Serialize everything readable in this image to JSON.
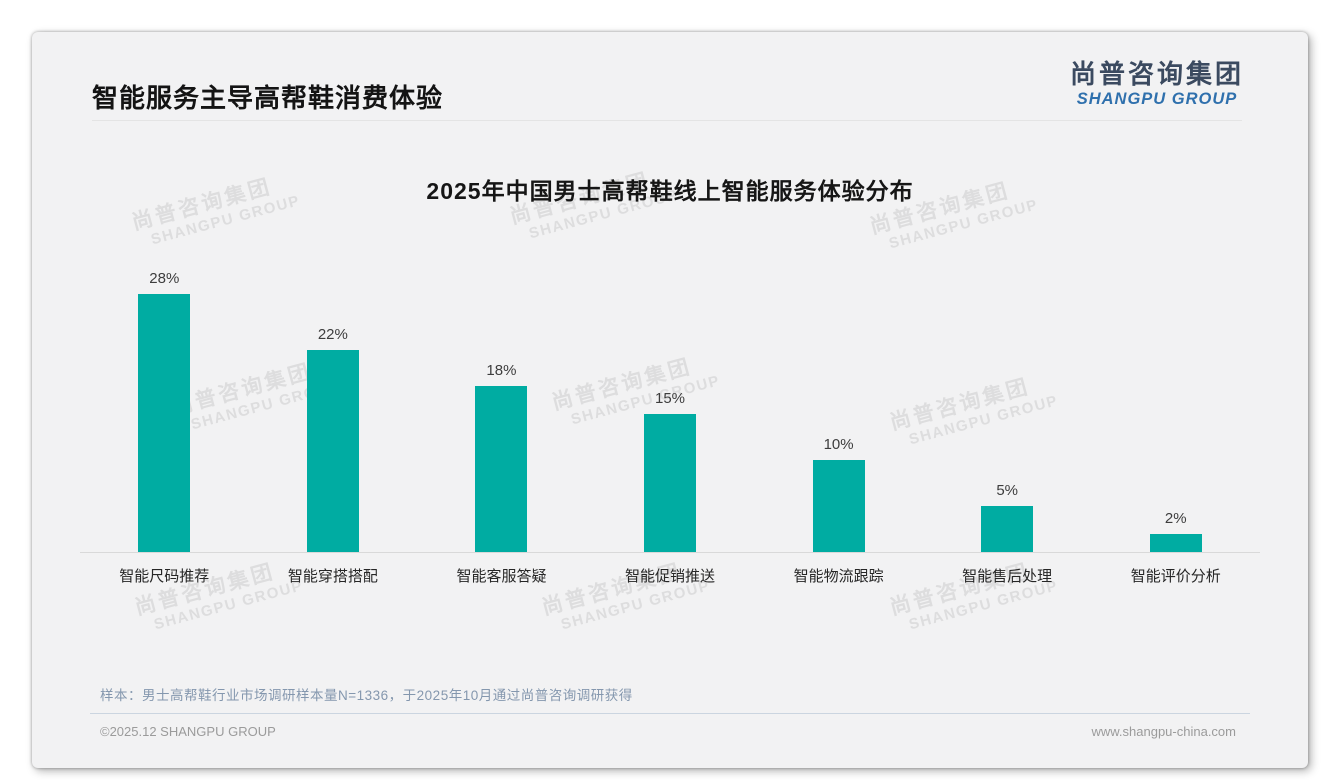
{
  "header": {
    "title": "智能服务主导高帮鞋消费体验",
    "logo_cn": "尚普咨询集团",
    "logo_en": "SHANGPU GROUP"
  },
  "chart_data": {
    "type": "bar",
    "title": "2025年中国男士高帮鞋线上智能服务体验分布",
    "categories": [
      "智能尺码推荐",
      "智能穿搭搭配",
      "智能客服答疑",
      "智能促销推送",
      "智能物流跟踪",
      "智能售后处理",
      "智能评价分析"
    ],
    "values": [
      28,
      22,
      18,
      15,
      10,
      5,
      2
    ],
    "value_labels": [
      "28%",
      "22%",
      "18%",
      "15%",
      "10%",
      "5%",
      "2%"
    ],
    "unit": "%",
    "bar_color": "#00ACA2",
    "ylim": [
      0,
      30
    ],
    "grid": false,
    "legend": "none"
  },
  "watermark": {
    "line1": "尚普咨询集团",
    "line2": "SHANGPU GROUP"
  },
  "footnote": "样本：男士高帮鞋行业市场调研样本量N=1336，于2025年10月通过尚普咨询调研获得",
  "footer": {
    "left": "©2025.12 SHANGPU GROUP",
    "right": "www.shangpu-china.com"
  }
}
